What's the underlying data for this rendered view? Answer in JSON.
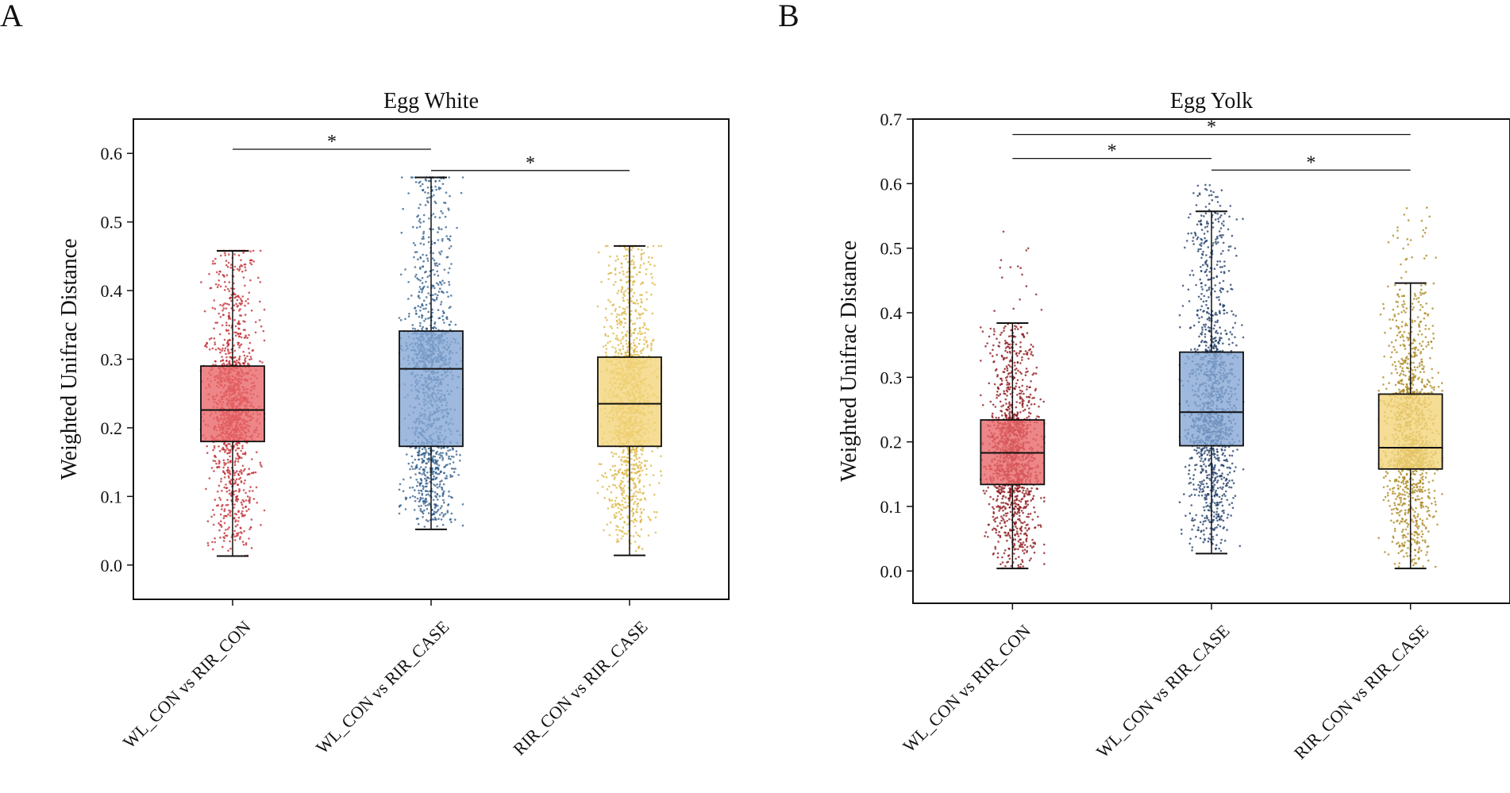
{
  "panels": [
    {
      "letter": "A"
    },
    {
      "letter": "B"
    }
  ],
  "chart_data": [
    {
      "type": "box",
      "title": "Egg White",
      "ylabel": "Weighted Unifrac Distance",
      "xlabel": "",
      "ylim": [
        -0.05,
        0.65
      ],
      "yticks": [
        "0.0",
        "0.1",
        "0.2",
        "0.3",
        "0.4",
        "0.5",
        "0.6"
      ],
      "categories": [
        "WL_CON vs RIR_CON",
        "WL_CON vs RIR_CASE",
        "RIR_CON vs RIR_CASE"
      ],
      "colors": {
        "box_fill": [
          "#e8686a",
          "#86a8d4",
          "#f3d47c"
        ],
        "points": [
          "#c0272d",
          "#2d5b8a",
          "#d9b43c"
        ]
      },
      "boxes": [
        {
          "min": 0.013,
          "q1": 0.18,
          "median": 0.226,
          "q3": 0.29,
          "max": 0.458,
          "point_max": 0.458
        },
        {
          "min": 0.052,
          "q1": 0.173,
          "median": 0.286,
          "q3": 0.341,
          "max": 0.565,
          "point_max": 0.565
        },
        {
          "min": 0.014,
          "q1": 0.173,
          "median": 0.235,
          "q3": 0.303,
          "max": 0.465,
          "point_max": 0.465
        }
      ],
      "significance": [
        {
          "from": 0,
          "to": 1,
          "y": 0.606,
          "label": "*"
        },
        {
          "from": 1,
          "to": 2,
          "y": 0.575,
          "label": "*"
        }
      ]
    },
    {
      "type": "box",
      "title": "Egg Yolk",
      "ylabel": "Weighted Unifrac Distance",
      "xlabel": "",
      "ylim": [
        -0.05,
        0.7
      ],
      "yticks": [
        "0.0",
        "0.1",
        "0.2",
        "0.3",
        "0.4",
        "0.5",
        "0.6",
        "0.7"
      ],
      "categories": [
        "WL_CON vs RIR_CON",
        "WL_CON vs RIR_CASE",
        "RIR_CON vs RIR_CASE"
      ],
      "colors": {
        "box_fill": [
          "#e8686a",
          "#86a8d4",
          "#f3d47c"
        ],
        "points": [
          "#8a1014",
          "#1c3a66",
          "#a88418"
        ]
      },
      "boxes": [
        {
          "min": 0.004,
          "q1": 0.134,
          "median": 0.183,
          "q3": 0.234,
          "max": 0.384,
          "point_max": 0.548
        },
        {
          "min": 0.027,
          "q1": 0.194,
          "median": 0.246,
          "q3": 0.339,
          "max": 0.557,
          "point_max": 0.6
        },
        {
          "min": 0.004,
          "q1": 0.158,
          "median": 0.191,
          "q3": 0.274,
          "max": 0.446,
          "point_max": 0.563
        }
      ],
      "significance": [
        {
          "from": 0,
          "to": 2,
          "y": 0.676,
          "label": "*"
        },
        {
          "from": 0,
          "to": 1,
          "y": 0.639,
          "label": "*"
        },
        {
          "from": 1,
          "to": 2,
          "y": 0.621,
          "label": "*"
        }
      ]
    }
  ]
}
